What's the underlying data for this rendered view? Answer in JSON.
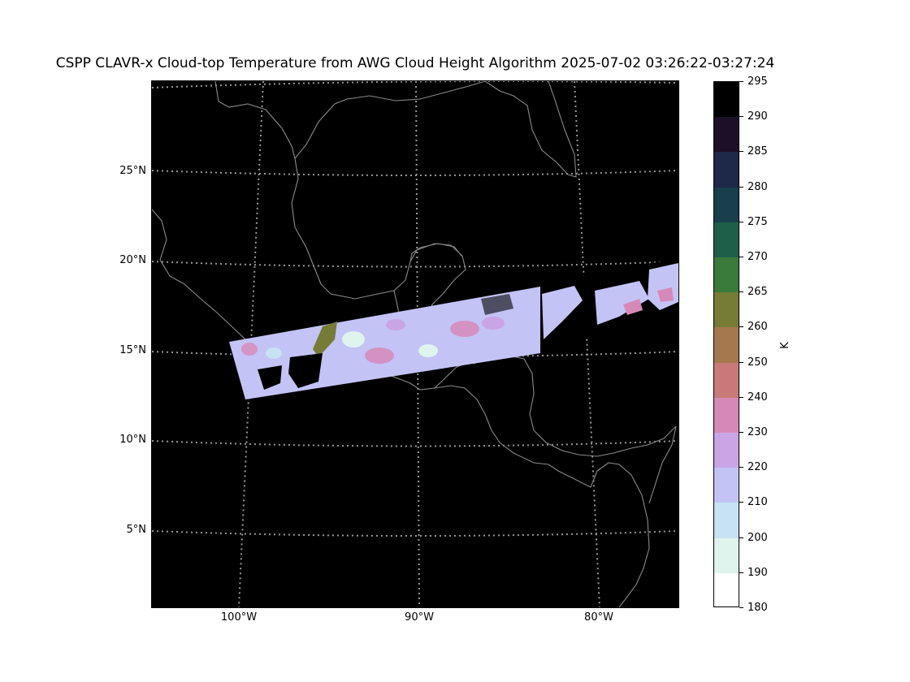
{
  "title": "CSPP CLAVR-x Cloud-top Temperature from AWG Cloud Height Algorithm 2025-07-02 03:26:22-03:27:24",
  "map": {
    "latitude_labels": [
      "25°N",
      "20°N",
      "15°N",
      "10°N",
      "5°N"
    ],
    "longitude_labels": [
      "100°W",
      "90°W",
      "80°W"
    ],
    "background": "#000000",
    "coastline_color": "#8a8a8a",
    "grid_color": "#9a9a9a"
  },
  "colorbar": {
    "units": "K",
    "tick_labels": [
      "295",
      "290",
      "285",
      "280",
      "275",
      "270",
      "265",
      "260",
      "250",
      "240",
      "230",
      "220",
      "210",
      "200",
      "190",
      "180"
    ],
    "colors": [
      "#000000",
      "#1c1029",
      "#1e2848",
      "#193f4d",
      "#1e5f4a",
      "#3a7a3a",
      "#767b36",
      "#a6784d",
      "#c97a78",
      "#d689b8",
      "#caa5e6",
      "#c3c3f5",
      "#c6e2f3",
      "#def4ed",
      "#ffffff"
    ]
  }
}
